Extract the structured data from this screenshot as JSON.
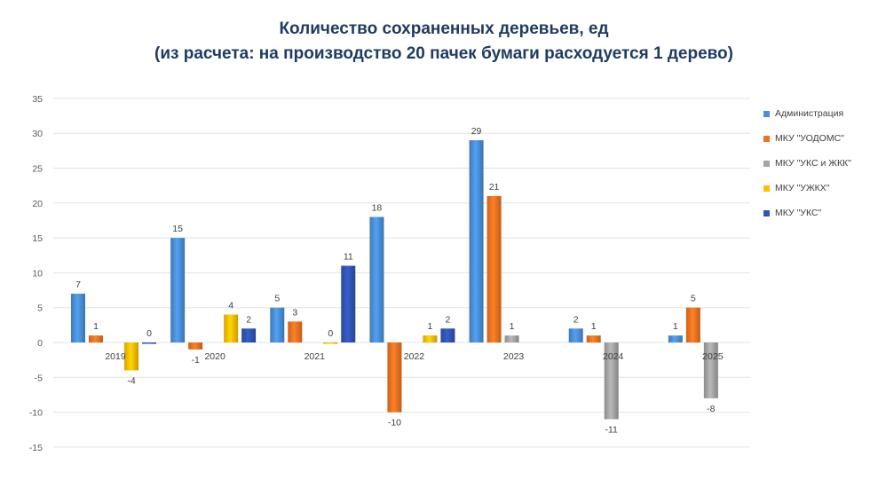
{
  "chart_data": {
    "type": "bar",
    "title": "Количество сохраненных деревьев, ед",
    "subtitle": "(из расчета: на производство  20 пачек бумаги расходуется  1 дерево)",
    "categories": [
      "2019",
      "2020",
      "2021",
      "2022",
      "2023",
      "2024",
      "2025"
    ],
    "yticks": [
      "35",
      "30",
      "25",
      "20",
      "15",
      "10",
      "5",
      "0",
      "-5",
      "-10",
      "-15"
    ],
    "ylim": [
      -15,
      35
    ],
    "grid": true,
    "legend_position": "right",
    "series": [
      {
        "name": "Администрация",
        "color": "#4a90d9",
        "values": [
          7,
          15,
          5,
          18,
          29,
          2,
          1
        ],
        "labels": [
          "7",
          "15",
          "5",
          "18",
          "29",
          "2",
          "1"
        ]
      },
      {
        "name": "МКУ \"УОДОМС\"",
        "color": "#f07320",
        "values": [
          1,
          -1,
          3,
          -10,
          21,
          1,
          5
        ],
        "labels": [
          "1",
          "-1",
          "3",
          "-10",
          "21",
          "1",
          "5"
        ]
      },
      {
        "name": "МКУ \"УКС и ЖКК\"",
        "color": "#a5a5a5",
        "values": [
          null,
          null,
          null,
          null,
          1,
          -11,
          -8
        ],
        "labels": [
          "",
          "",
          "",
          "",
          "1",
          "-11",
          "-8"
        ]
      },
      {
        "name": "МКУ \"УЖКХ\"",
        "color": "#ffc000",
        "values": [
          -4,
          4,
          0,
          1,
          null,
          null,
          null
        ],
        "labels": [
          "-4",
          "4",
          "0",
          "1",
          "",
          "",
          ""
        ]
      },
      {
        "name": "МКУ \"УКС\"",
        "color": "#2f55b4",
        "values": [
          0,
          2,
          11,
          2,
          null,
          null,
          null
        ],
        "labels": [
          "0",
          "2",
          "11",
          "2",
          "",
          "",
          ""
        ]
      }
    ]
  }
}
